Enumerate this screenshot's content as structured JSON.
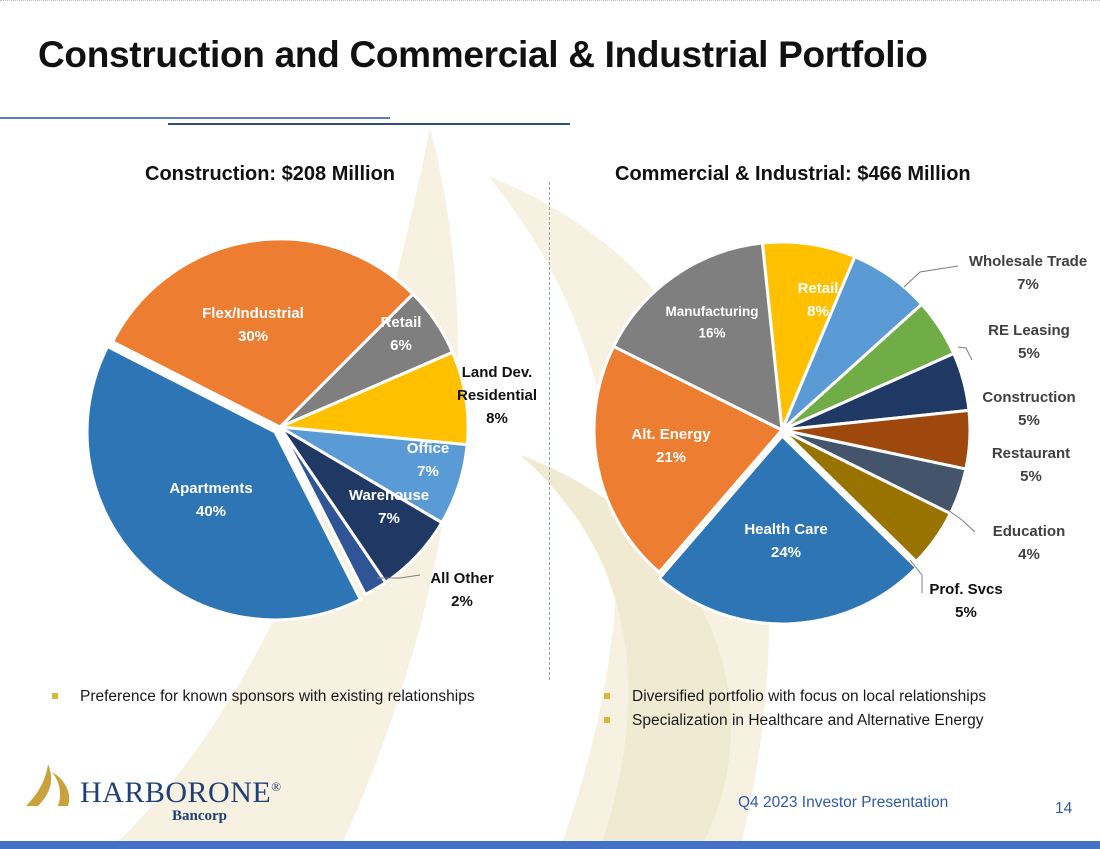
{
  "slide": {
    "title": "Construction and Commercial & Industrial Portfolio",
    "footer_label": "Q4 2023 Investor Presentation",
    "page_number": "14",
    "accent_color": "#4472c4",
    "bullet_color": "#d9b73c"
  },
  "logo": {
    "name": "HARBORONE",
    "registered_mark": "®",
    "sub": "Bancorp",
    "color": "#1f3f76",
    "mark_color": "#c9a23c"
  },
  "chart_data": [
    {
      "type": "pie",
      "title": "Construction:  $208 Million",
      "start_angle_deg": 45,
      "slices": [
        {
          "label": "Retail",
          "value": 6,
          "pct": "6%",
          "color": "#7f7f7f",
          "text_color": "#ffffff"
        },
        {
          "label": "Land Dev. Residential",
          "value": 8,
          "pct": "8%",
          "color": "#ffc000",
          "text_color": "#111111"
        },
        {
          "label": "Office",
          "value": 7,
          "pct": "7%",
          "color": "#5b9bd5",
          "text_color": "#ffffff"
        },
        {
          "label": "Warehouse",
          "value": 7,
          "pct": "7%",
          "color": "#203864",
          "text_color": "#ffffff"
        },
        {
          "label": "All Other",
          "value": 2,
          "pct": "2%",
          "color": "#2f5597",
          "text_color": "#111111"
        },
        {
          "label": "Apartments",
          "value": 40,
          "pct": "40%",
          "color": "#2e75b6",
          "text_color": "#ffffff"
        },
        {
          "label": "Flex/Industrial",
          "value": 30,
          "pct": "30%",
          "color": "#ed7d31",
          "text_color": "#ffffff"
        }
      ],
      "bullets": [
        "Preference for known sponsors with existing relationships"
      ]
    },
    {
      "type": "pie",
      "title": "Commercial & Industrial:  $466 Million",
      "start_angle_deg": -6,
      "slices": [
        {
          "label": "Retail",
          "value": 8,
          "pct": "8%",
          "color": "#ffc000",
          "text_color": "#ffffff"
        },
        {
          "label": "Wholesale Trade",
          "value": 7,
          "pct": "7%",
          "color": "#5b9bd5",
          "text_color": "#404040"
        },
        {
          "label": "RE Leasing",
          "value": 5,
          "pct": "5%",
          "color": "#70ad47",
          "text_color": "#404040"
        },
        {
          "label": "Construction",
          "value": 5,
          "pct": "5%",
          "color": "#203864",
          "text_color": "#404040"
        },
        {
          "label": "Restaurant",
          "value": 5,
          "pct": "5%",
          "color": "#9e480e",
          "text_color": "#404040"
        },
        {
          "label": "Education",
          "value": 4,
          "pct": "4%",
          "color": "#44546a",
          "text_color": "#404040"
        },
        {
          "label": "Prof. Svcs",
          "value": 5,
          "pct": "5%",
          "color": "#997300",
          "text_color": "#111111"
        },
        {
          "label": "Health Care",
          "value": 24,
          "pct": "24%",
          "color": "#2e75b6",
          "text_color": "#ffffff"
        },
        {
          "label": "Alt. Energy",
          "value": 21,
          "pct": "21%",
          "color": "#ed7d31",
          "text_color": "#ffffff"
        },
        {
          "label": "Manufacturing",
          "value": 16,
          "pct": "16%",
          "color": "#7f7f7f",
          "text_color": "#ffffff"
        }
      ],
      "bullets": [
        "Diversified portfolio with focus on local relationships",
        "Specialization in Healthcare and Alternative Energy"
      ]
    }
  ]
}
